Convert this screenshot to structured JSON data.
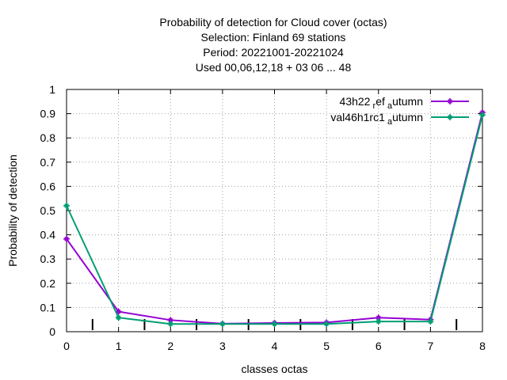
{
  "chart_data": {
    "type": "line",
    "title": [
      "Probability of detection  for Cloud cover (octas)",
      "Selection: Finland     69 stations",
      "Period: 20221001-20221024",
      "Used  00,06,12,18  + 03 06 ... 48"
    ],
    "xlabel": "classes octas",
    "ylabel": "Probability of detection",
    "x": [
      0,
      1,
      2,
      3,
      4,
      5,
      6,
      7,
      8
    ],
    "xlim": [
      0,
      8
    ],
    "ylim": [
      0,
      1
    ],
    "xticks": [
      "0",
      "1",
      "2",
      "3",
      "4",
      "5",
      "6",
      "7",
      "8"
    ],
    "yticks": [
      "0",
      "0.1",
      "0.2",
      "0.3",
      "0.4",
      "0.5",
      "0.6",
      "0.7",
      "0.8",
      "0.9",
      "1"
    ],
    "minor_marks_x": [
      0.5,
      1.5,
      2.5,
      3.5,
      4.5,
      5.5,
      6.5,
      7.5
    ],
    "grid": true,
    "legend_position": "top-right",
    "series": [
      {
        "name": "43h22",
        "legend": {
          "base": "43h22",
          "sub1": "r",
          "mid": "ef",
          "sub2": "a",
          "tail": "utumn"
        },
        "color": "#9400d3",
        "values": [
          0.383,
          0.083,
          0.048,
          0.033,
          0.036,
          0.038,
          0.058,
          0.05,
          0.905
        ]
      },
      {
        "name": "val46h1rc1",
        "legend": {
          "base": "val46h1rc1",
          "sub2": "a",
          "tail": "utumn"
        },
        "color": "#009e73",
        "values": [
          0.52,
          0.058,
          0.032,
          0.032,
          0.032,
          0.032,
          0.042,
          0.042,
          0.895
        ]
      }
    ]
  }
}
